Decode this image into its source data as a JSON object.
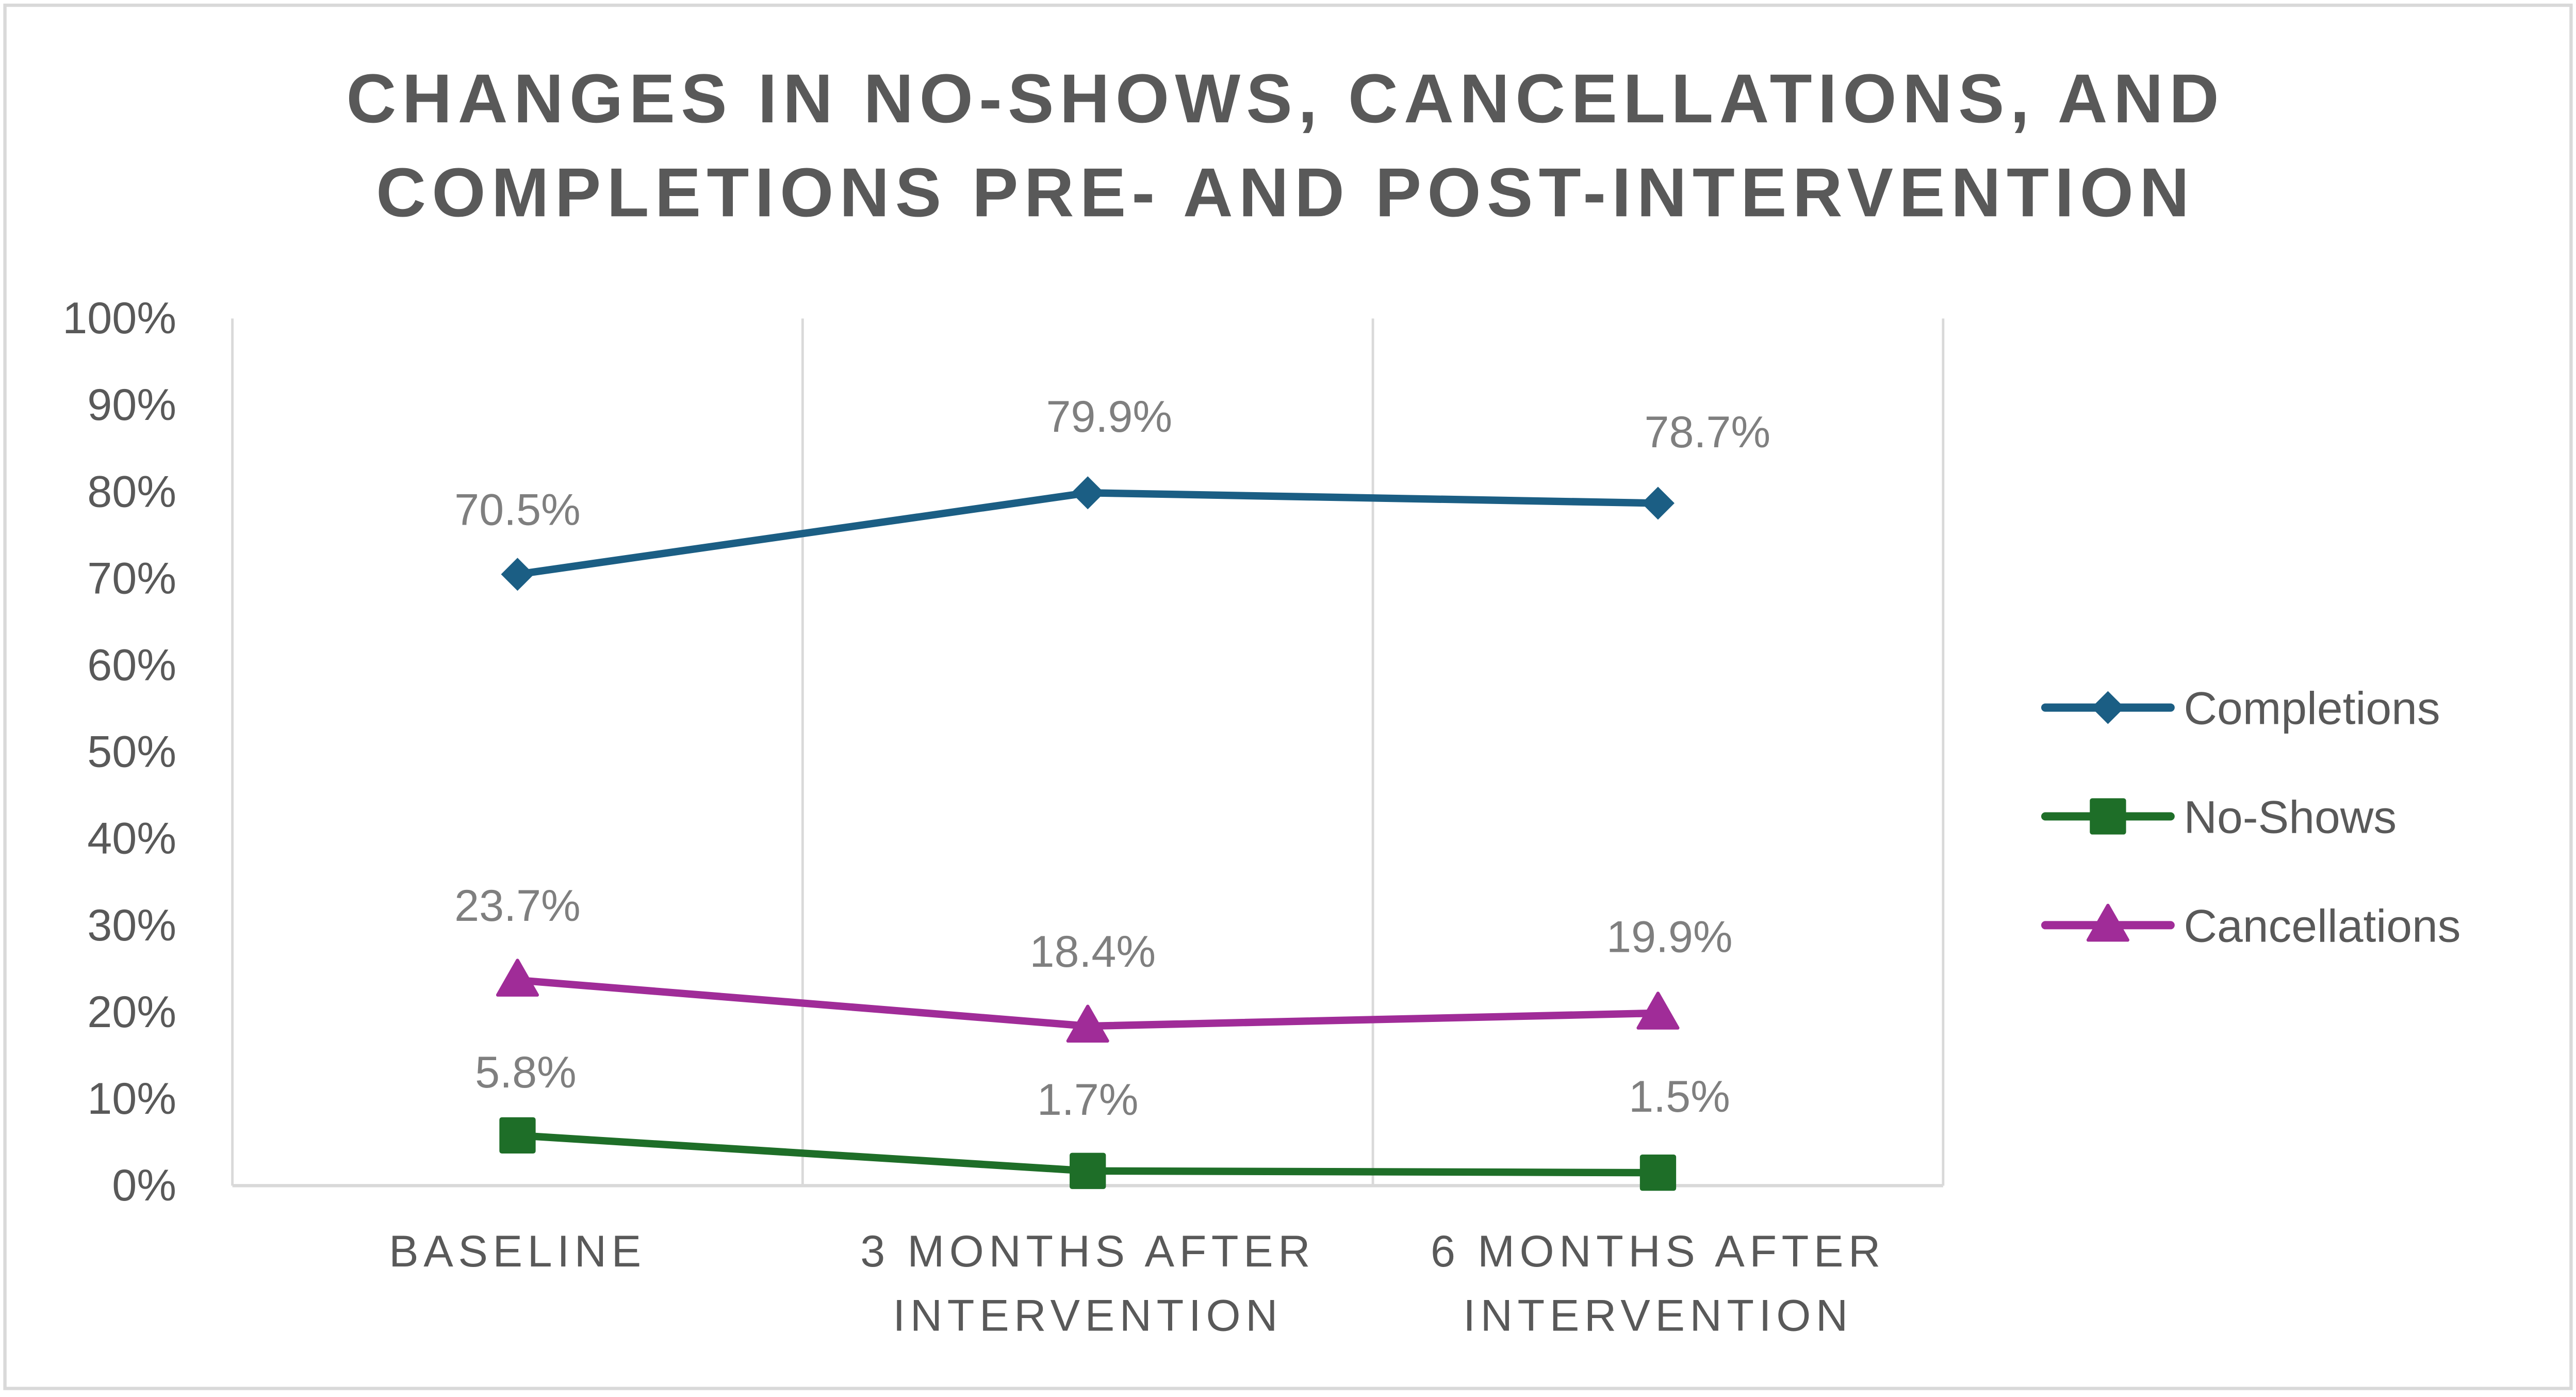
{
  "chart_data": {
    "type": "line",
    "title": [
      "CHANGES IN NO-SHOWS, CANCELLATIONS, AND",
      "COMPLETIONS PRE- AND POST-INTERVENTION"
    ],
    "xlabel": "",
    "ylabel": "",
    "categories": [
      [
        "BASELINE"
      ],
      [
        "3 MONTHS AFTER",
        "INTERVENTION"
      ],
      [
        "6 MONTHS AFTER",
        "INTERVENTION"
      ]
    ],
    "ylim": [
      0,
      100
    ],
    "yticks": [
      0,
      10,
      20,
      30,
      40,
      50,
      60,
      70,
      80,
      90,
      100
    ],
    "ytick_labels": [
      "0%",
      "10%",
      "20%",
      "30%",
      "40%",
      "50%",
      "60%",
      "70%",
      "80%",
      "90%",
      "100%"
    ],
    "grid": "vertical",
    "legend_position": "right",
    "series": [
      {
        "name": "Completions",
        "values": [
          70.5,
          79.9,
          78.7
        ],
        "labels": [
          "70.5%",
          "79.9%",
          "78.7%"
        ],
        "color": "#1b5e84",
        "marker": "diamond"
      },
      {
        "name": "No-Shows",
        "values": [
          5.8,
          1.7,
          1.5
        ],
        "labels": [
          "5.8%",
          "1.7%",
          "1.5%"
        ],
        "color": "#1e6e28",
        "marker": "square"
      },
      {
        "name": "Cancellations",
        "values": [
          23.7,
          18.4,
          19.9
        ],
        "labels": [
          "23.7%",
          "18.4%",
          "19.9%"
        ],
        "color": "#a02c98",
        "marker": "triangle"
      }
    ]
  }
}
